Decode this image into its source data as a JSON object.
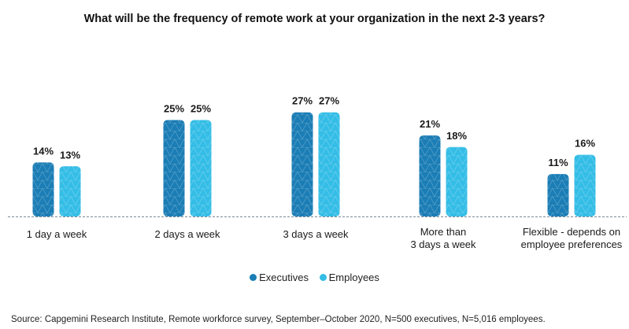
{
  "chart_data": {
    "type": "bar",
    "title": "What will be the frequency of remote work at your organization in the next 2-3 years?",
    "categories": [
      [
        "1 day a week"
      ],
      [
        "2 days a week"
      ],
      [
        "3 days a week"
      ],
      [
        "More than",
        "3 days a week"
      ],
      [
        "Flexible - depends on",
        "employee preferences"
      ]
    ],
    "series": [
      {
        "name": "Executives",
        "values": [
          14,
          25,
          27,
          21,
          11
        ],
        "labels": [
          "14%",
          "25%",
          "27%",
          "21%",
          "11%"
        ],
        "color": "#1b7db5"
      },
      {
        "name": "Employees",
        "values": [
          13,
          25,
          27,
          18,
          16
        ],
        "labels": [
          "13%",
          "25%",
          "27%",
          "18%",
          "16%"
        ],
        "color": "#34bde6"
      }
    ],
    "xlabel": "",
    "ylabel": "",
    "ylim": [
      0,
      30
    ],
    "grid": false,
    "legend_position": "bottom-center",
    "source": "Source: Capgemini Research Institute, Remote workforce survey, September–October 2020, N=500 executives, N=5,016 employees."
  }
}
